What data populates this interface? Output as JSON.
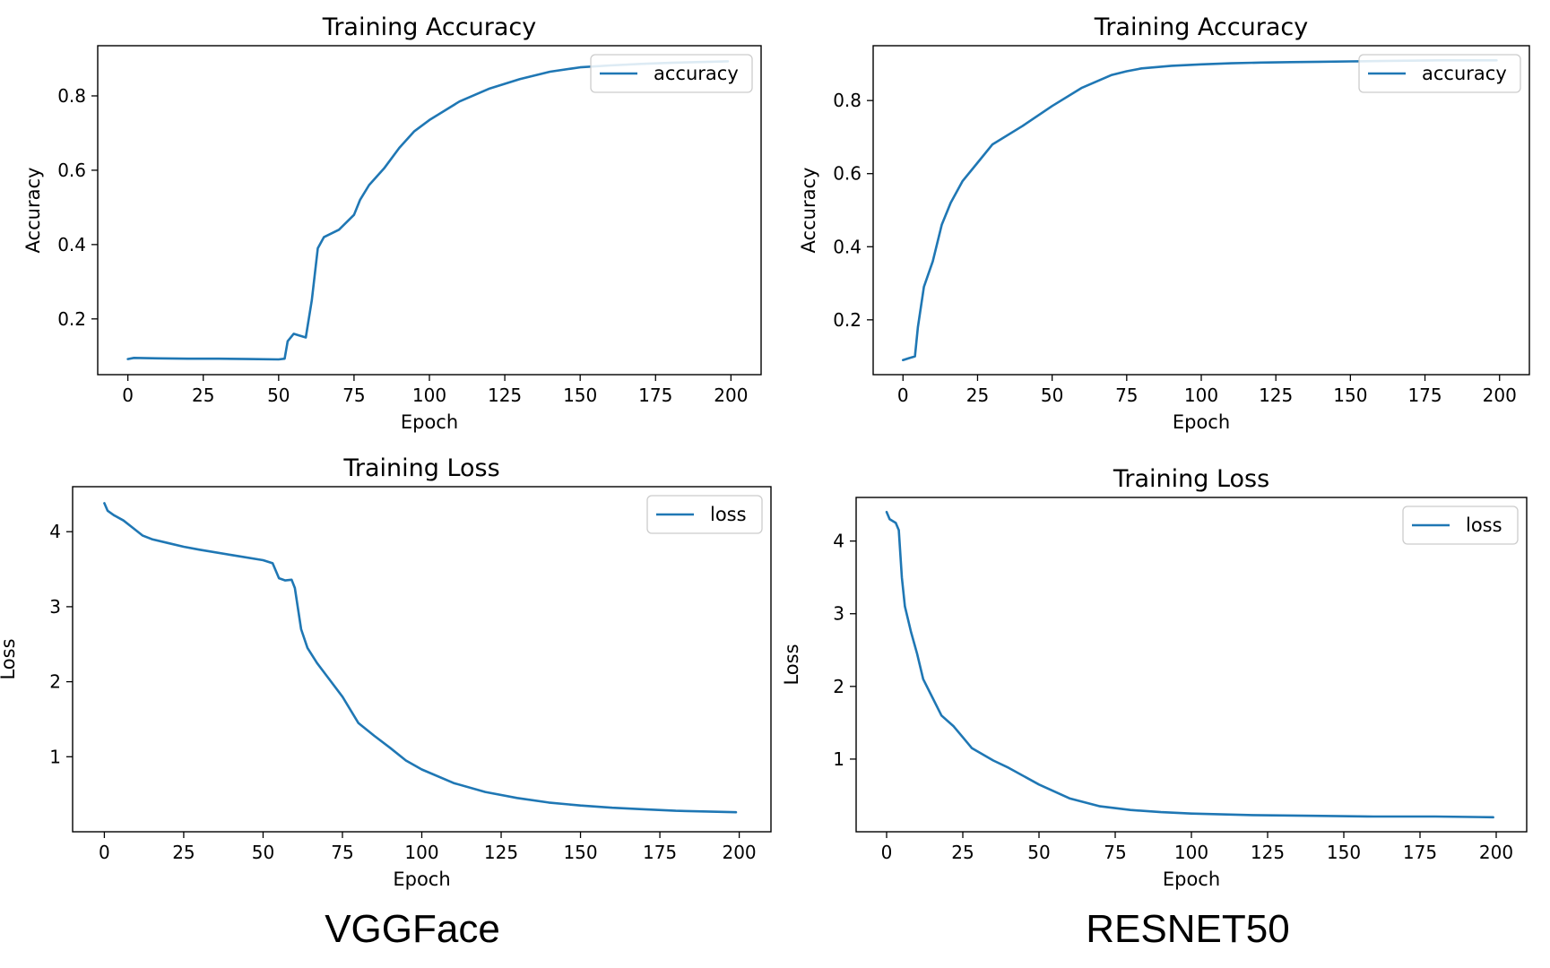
{
  "chart_data": [
    {
      "type": "line",
      "title": "Training Accuracy",
      "xlabel": "Epoch",
      "ylabel": "Accuracy",
      "xlim": [
        -10,
        210
      ],
      "ylim": [
        0.05,
        0.935
      ],
      "xticks": [
        0,
        25,
        50,
        75,
        100,
        125,
        150,
        175,
        200
      ],
      "yticks": [
        0.2,
        0.4,
        0.6,
        0.8
      ],
      "yticklabels": [
        "0.2",
        "0.4",
        "0.6",
        "0.8"
      ],
      "legend": "top-right",
      "series": [
        {
          "name": "accuracy",
          "color": "#1f77b4",
          "x": [
            0,
            2,
            10,
            20,
            30,
            40,
            50,
            52,
            53,
            55,
            57,
            59,
            61,
            63,
            65,
            70,
            75,
            77,
            80,
            85,
            90,
            95,
            100,
            110,
            120,
            130,
            140,
            150,
            160,
            170,
            180,
            190,
            199
          ],
          "y": [
            0.092,
            0.095,
            0.094,
            0.093,
            0.093,
            0.092,
            0.091,
            0.093,
            0.14,
            0.16,
            0.155,
            0.15,
            0.25,
            0.39,
            0.42,
            0.44,
            0.48,
            0.52,
            0.56,
            0.605,
            0.66,
            0.705,
            0.735,
            0.785,
            0.82,
            0.845,
            0.865,
            0.877,
            0.882,
            0.886,
            0.889,
            0.891,
            0.893
          ]
        }
      ]
    },
    {
      "type": "line",
      "title": "Training Accuracy",
      "xlabel": "Epoch",
      "ylabel": "Accuracy",
      "xlim": [
        -10,
        210
      ],
      "ylim": [
        0.05,
        0.95
      ],
      "xticks": [
        0,
        25,
        50,
        75,
        100,
        125,
        150,
        175,
        200
      ],
      "yticks": [
        0.2,
        0.4,
        0.6,
        0.8
      ],
      "yticklabels": [
        "0.2",
        "0.4",
        "0.6",
        "0.8"
      ],
      "legend": "top-right",
      "series": [
        {
          "name": "accuracy",
          "color": "#1f77b4",
          "x": [
            0,
            2,
            4,
            5,
            7,
            10,
            13,
            16,
            20,
            25,
            30,
            40,
            50,
            60,
            70,
            75,
            80,
            90,
            100,
            110,
            120,
            130,
            140,
            150,
            160,
            170,
            180,
            190,
            199
          ],
          "y": [
            0.09,
            0.095,
            0.1,
            0.18,
            0.29,
            0.36,
            0.46,
            0.52,
            0.58,
            0.63,
            0.68,
            0.73,
            0.785,
            0.835,
            0.87,
            0.88,
            0.888,
            0.895,
            0.899,
            0.902,
            0.904,
            0.905,
            0.906,
            0.907,
            0.908,
            0.909,
            0.91,
            0.91,
            0.91
          ]
        }
      ]
    },
    {
      "type": "line",
      "title": "Training Loss",
      "xlabel": "Epoch",
      "ylabel": "Loss",
      "xlim": [
        -10,
        210
      ],
      "ylim": [
        0.0,
        4.6
      ],
      "xticks": [
        0,
        25,
        50,
        75,
        100,
        125,
        150,
        175,
        200
      ],
      "yticks": [
        1,
        2,
        3,
        4
      ],
      "yticklabels": [
        "1",
        "2",
        "3",
        "4"
      ],
      "legend": "top-right",
      "series": [
        {
          "name": "loss",
          "color": "#1f77b4",
          "x": [
            0,
            1,
            3,
            6,
            9,
            12,
            15,
            20,
            25,
            30,
            40,
            50,
            53,
            55,
            57,
            59,
            60,
            62,
            64,
            67,
            70,
            75,
            80,
            85,
            90,
            95,
            100,
            110,
            120,
            130,
            140,
            150,
            160,
            170,
            180,
            190,
            199
          ],
          "y": [
            4.38,
            4.28,
            4.22,
            4.15,
            4.05,
            3.95,
            3.9,
            3.85,
            3.8,
            3.76,
            3.69,
            3.62,
            3.58,
            3.38,
            3.35,
            3.36,
            3.25,
            2.7,
            2.45,
            2.25,
            2.08,
            1.8,
            1.45,
            1.28,
            1.12,
            0.95,
            0.83,
            0.65,
            0.53,
            0.45,
            0.39,
            0.35,
            0.32,
            0.3,
            0.28,
            0.27,
            0.26
          ]
        }
      ]
    },
    {
      "type": "line",
      "title": "Training Loss",
      "xlabel": "Epoch",
      "ylabel": "Loss",
      "xlim": [
        -10,
        210
      ],
      "ylim": [
        0.0,
        4.6
      ],
      "xticks": [
        0,
        25,
        50,
        75,
        100,
        125,
        150,
        175,
        200
      ],
      "yticks": [
        1,
        2,
        3,
        4
      ],
      "yticklabels": [
        "1",
        "2",
        "3",
        "4"
      ],
      "legend": "top-right",
      "series": [
        {
          "name": "loss",
          "color": "#1f77b4",
          "x": [
            0,
            1,
            3,
            4,
            5,
            6,
            8,
            10,
            12,
            15,
            18,
            22,
            25,
            28,
            35,
            40,
            50,
            60,
            70,
            80,
            90,
            100,
            120,
            140,
            160,
            180,
            199
          ],
          "y": [
            4.4,
            4.3,
            4.25,
            4.15,
            3.5,
            3.1,
            2.75,
            2.45,
            2.1,
            1.85,
            1.6,
            1.45,
            1.3,
            1.15,
            0.98,
            0.88,
            0.65,
            0.46,
            0.35,
            0.3,
            0.27,
            0.25,
            0.23,
            0.22,
            0.21,
            0.21,
            0.2
          ]
        }
      ]
    }
  ],
  "captions": {
    "left": "VGGFace",
    "right": "RESNET50"
  }
}
